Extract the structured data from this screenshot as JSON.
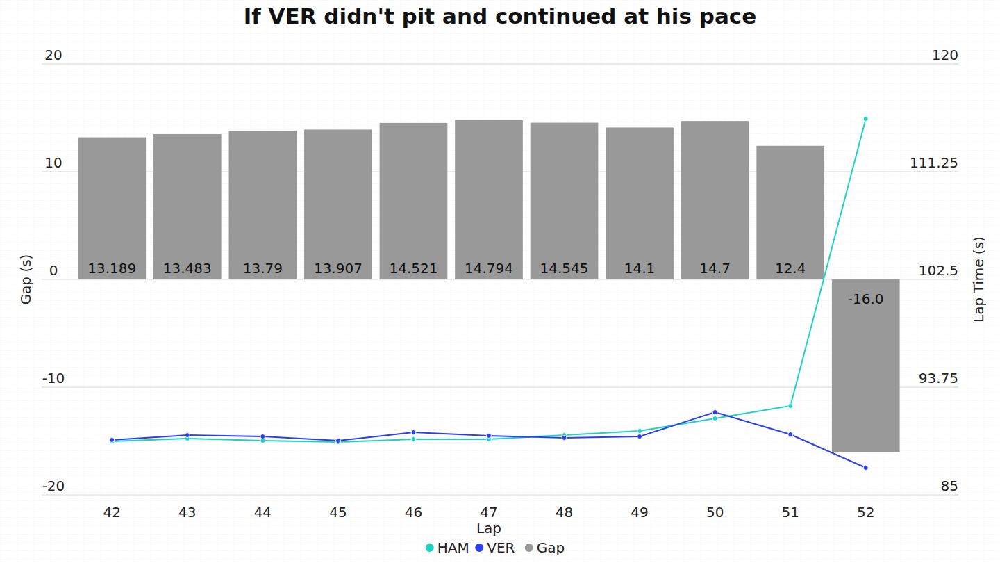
{
  "chart_data": {
    "type": "bar",
    "title": "If VER didn't pit and continued at his pace",
    "xlabel": "Lap",
    "ylabel": "Gap (s)",
    "y2label": "Lap Time (s)",
    "categories": [
      "42",
      "43",
      "44",
      "45",
      "46",
      "47",
      "48",
      "49",
      "50",
      "51",
      "52"
    ],
    "ylim": [
      -20,
      20
    ],
    "yticks": [
      -20,
      -10,
      0,
      10,
      20
    ],
    "y2lim": [
      85,
      120
    ],
    "y2ticks": [
      85,
      93.75,
      102.5,
      111.25,
      120
    ],
    "grid": true,
    "legend": "bottom",
    "series": [
      {
        "name": "HAM",
        "type": "line",
        "axis": "y2",
        "color": "#1fd1c1",
        "marker": "circle",
        "line_style": "solid",
        "values": [
          89.35,
          89.57,
          89.4,
          89.29,
          89.52,
          89.52,
          89.85,
          90.19,
          91.21,
          92.23,
          115.54
        ]
      },
      {
        "name": "VER",
        "type": "line",
        "axis": "y2",
        "color": "#2a3ff0",
        "marker": "circle",
        "line_style": "solid",
        "values": [
          89.46,
          89.85,
          89.74,
          89.4,
          90.08,
          89.8,
          89.63,
          89.74,
          91.72,
          89.91,
          87.2
        ]
      },
      {
        "name": "Gap",
        "type": "bar",
        "color": "#999999",
        "data_labels": true,
        "values": [
          13.189,
          13.483,
          13.79,
          13.907,
          14.521,
          14.794,
          14.545,
          14.1,
          14.7,
          12.4,
          -16.0
        ],
        "value_labels": [
          "13.189",
          "13.483",
          "13.79",
          "13.907",
          "14.521",
          "14.794",
          "14.545",
          "14.1",
          "14.7",
          "12.4",
          "-16.0"
        ]
      }
    ]
  }
}
